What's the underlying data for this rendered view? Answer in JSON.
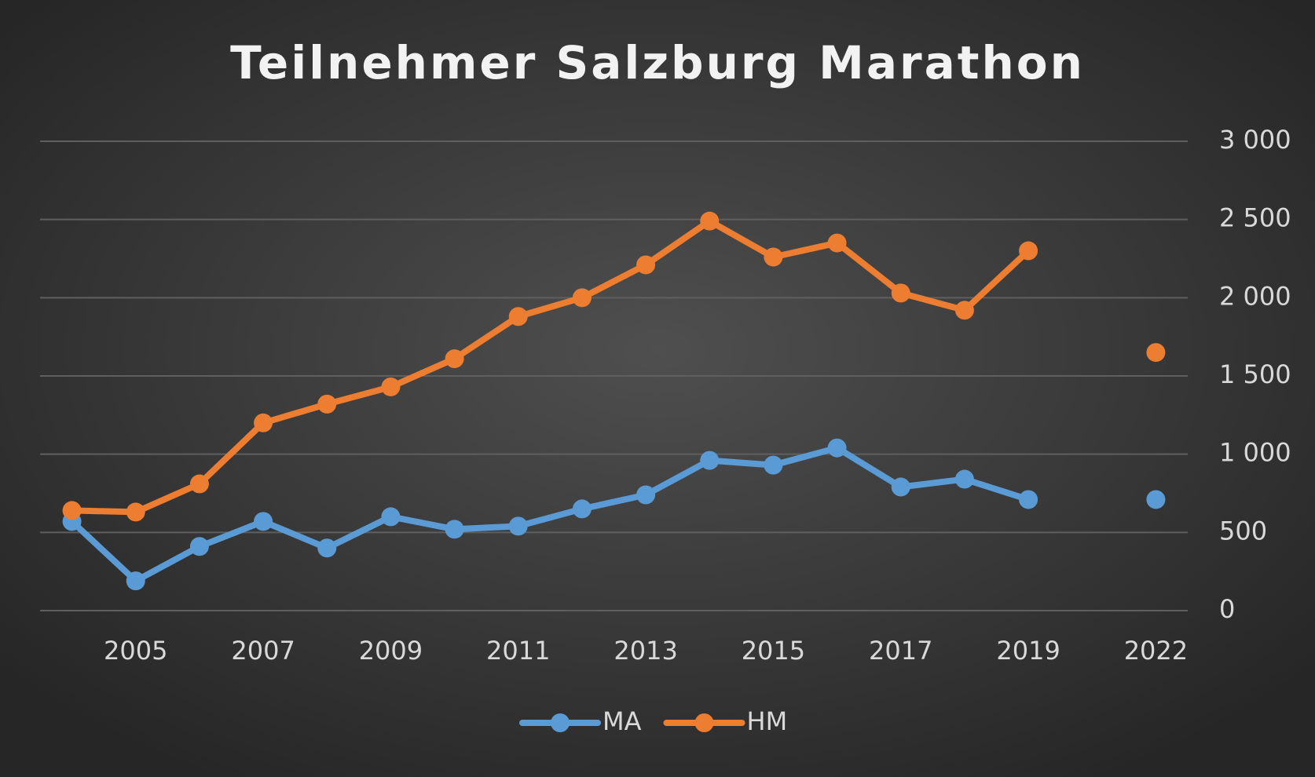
{
  "chart_data": {
    "type": "line",
    "title": "Teilnehmer Salzburg Marathon",
    "categories": [
      null,
      "2005",
      null,
      "2007",
      null,
      "2009",
      null,
      "2011",
      null,
      "2013",
      null,
      "2015",
      null,
      "2017",
      null,
      "2019",
      null,
      "2022"
    ],
    "series": [
      {
        "name": "MA",
        "color": "#5b9bd5",
        "values": [
          570,
          190,
          410,
          570,
          400,
          600,
          520,
          540,
          650,
          740,
          960,
          930,
          1040,
          790,
          840,
          710,
          null,
          710
        ]
      },
      {
        "name": "HM",
        "color": "#ed7d31",
        "values": [
          640,
          630,
          810,
          1200,
          1320,
          1430,
          1610,
          1880,
          2000,
          2210,
          2490,
          2260,
          2350,
          2030,
          1920,
          2300,
          null,
          1650
        ]
      }
    ],
    "ylim": [
      0,
      3000
    ],
    "yticks": [
      0,
      500,
      {
        "value": 1000,
        "label": "1 000"
      },
      {
        "value": 1500,
        "label": "1 500"
      },
      {
        "value": 2000,
        "label": "2 000"
      },
      {
        "value": 2500,
        "label": "2 500"
      },
      {
        "value": 3000,
        "label": "3 000"
      }
    ],
    "grid": true,
    "legend": "bottom"
  }
}
